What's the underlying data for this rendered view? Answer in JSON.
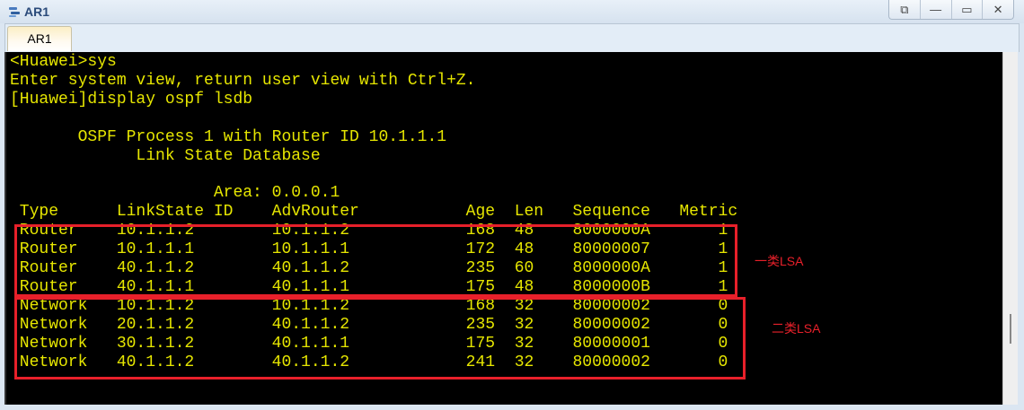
{
  "window": {
    "title": "AR1",
    "tab": "AR1",
    "icon": "network-device-icon",
    "controls": [
      "restore-icon",
      "minimize-icon",
      "maximize-icon",
      "close-icon"
    ]
  },
  "terminal": {
    "intro_lines": [
      "<Huawei>sys",
      "Enter system view, return user view with Ctrl+Z.",
      "[Huawei]display ospf lsdb",
      "",
      "       OSPF Process 1 with Router ID 10.1.1.1",
      "             Link State Database",
      "",
      "                     Area: 0.0.0.1"
    ],
    "columns": [
      "Type",
      "LinkState ID",
      "AdvRouter",
      "Age",
      "Len",
      "Sequence",
      "Metric"
    ],
    "rows": [
      [
        "Router",
        "10.1.1.2",
        "10.1.1.2",
        "168",
        "48",
        "8000000A",
        "1"
      ],
      [
        "Router",
        "10.1.1.1",
        "10.1.1.1",
        "172",
        "48",
        "80000007",
        "1"
      ],
      [
        "Router",
        "40.1.1.2",
        "40.1.1.2",
        "235",
        "60",
        "8000000A",
        "1"
      ],
      [
        "Router",
        "40.1.1.1",
        "40.1.1.1",
        "175",
        "48",
        "8000000B",
        "1"
      ],
      [
        "Network",
        "10.1.1.2",
        "10.1.1.2",
        "168",
        "32",
        "80000002",
        "0"
      ],
      [
        "Network",
        "20.1.1.2",
        "40.1.1.2",
        "235",
        "32",
        "80000002",
        "0"
      ],
      [
        "Network",
        "30.1.1.2",
        "40.1.1.1",
        "175",
        "32",
        "80000001",
        "0"
      ],
      [
        "Network",
        "40.1.1.2",
        "40.1.1.2",
        "241",
        "32",
        "80000002",
        "0"
      ]
    ]
  },
  "annotations": {
    "type1": "一类LSA",
    "type2": "二类LSA"
  },
  "colors": {
    "text": "#e6e600",
    "annotation": "#e8202a",
    "background": "#000000"
  }
}
